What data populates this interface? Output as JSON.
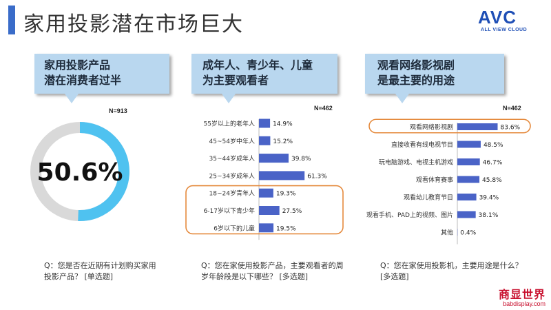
{
  "title": "家用投影潜在市场巨大",
  "logo": {
    "main": "AVC",
    "sub": "ALL VIEW CLOUD"
  },
  "brand": {
    "main": "商显世界",
    "sub": "babdisplay.com"
  },
  "colors": {
    "accent": "#3a6cc9",
    "bar": "#4a63c7",
    "donut": "#4fc2f0",
    "donut_rest": "#d9d9d9",
    "highlight": "#e58a3d",
    "callout": "#b9d7ef"
  },
  "panels": [
    {
      "callout": [
        "家用投影产品",
        "潜在消费者过半"
      ],
      "n": "N=913",
      "question": [
        "Q：您是否在近期有计划购买家用",
        "投影产品？ [单选题]"
      ]
    },
    {
      "callout": [
        "成年人、青少年、儿童",
        "为主要观看者"
      ],
      "n": "N=462",
      "question": [
        "Q：您在家使用投影产品，主要观看者的周",
        "岁年龄段是以下哪些？ [多选题]"
      ]
    },
    {
      "callout": [
        "观看网络影视剧",
        "是最主要的用途"
      ],
      "n": "N=462",
      "question": [
        "Q：您在家使用投影机，主要用途是什么？",
        "[多选题]"
      ]
    }
  ],
  "chart_data": [
    {
      "type": "pie",
      "value": 50.6,
      "label": "50.6%",
      "donut": true
    },
    {
      "type": "bar",
      "orientation": "horizontal",
      "categories": [
        "55岁以上的老年人",
        "45~54岁中年人",
        "35~44岁成年人",
        "25~34岁成年人",
        "18~24岁青年人",
        "6-17岁以下青少年",
        "6岁以下的儿童"
      ],
      "values": [
        14.9,
        15.2,
        39.8,
        61.3,
        19.3,
        27.5,
        19.5
      ],
      "labels": [
        "14.9%",
        "15.2%",
        "39.8%",
        "61.3%",
        "19.3%",
        "27.5%",
        "19.5%"
      ],
      "highlight": [
        4,
        5,
        6
      ]
    },
    {
      "type": "bar",
      "orientation": "horizontal",
      "categories": [
        "观看网络影视剧",
        "直接收看有线电视节目",
        "玩电脑游戏、电视主机游戏",
        "观看体育赛事",
        "观看幼儿教育节目",
        "观看手机、PAD上的视频、图片",
        "其他"
      ],
      "values": [
        83.6,
        48.5,
        46.7,
        45.8,
        39.4,
        38.1,
        0.4
      ],
      "labels": [
        "83.6%",
        "48.5%",
        "46.7%",
        "45.8%",
        "39.4%",
        "38.1%",
        "0.4%"
      ],
      "highlight": [
        0
      ]
    }
  ]
}
